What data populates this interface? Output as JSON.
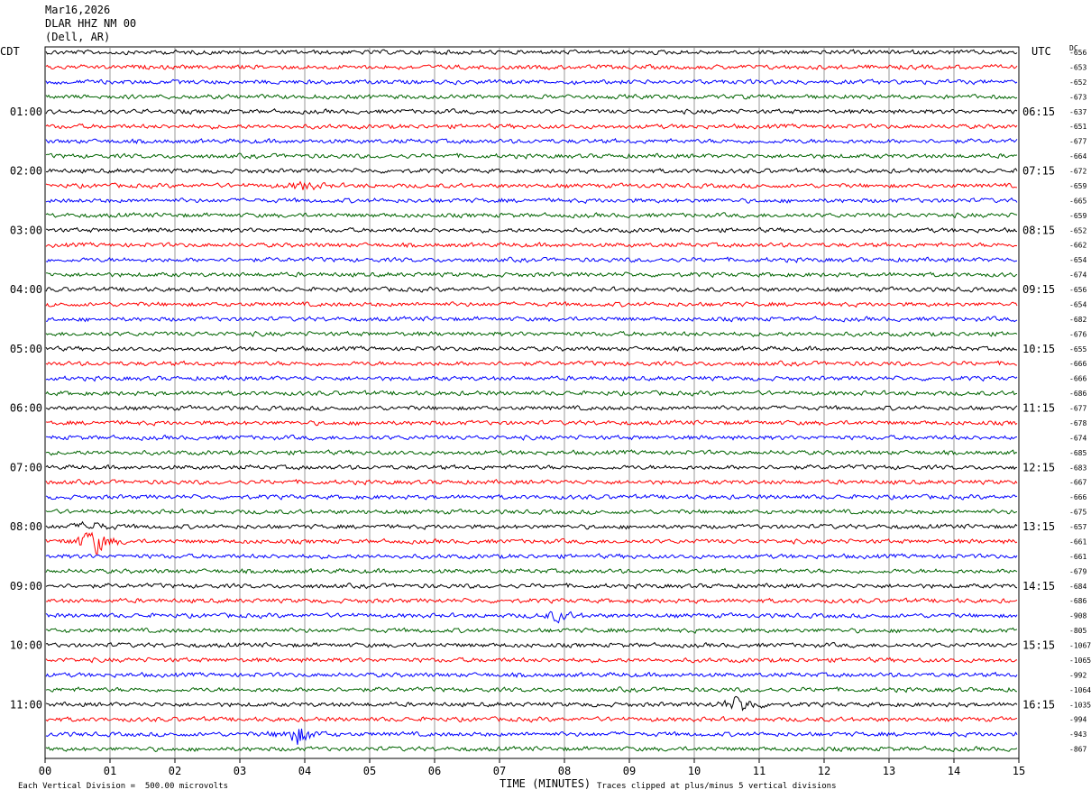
{
  "header": {
    "date": "Mar16,2026",
    "station": "DLAR HHZ NM 00",
    "location": "(Dell, AR)"
  },
  "left_timezone": "CDT",
  "right_timezone": "UTC",
  "dc_label": "DC",
  "footer": {
    "scale_note": "Each Vertical Division =  500.00 microvolts",
    "xaxis_title": "TIME (MINUTES)",
    "clip_note": "Traces clipped at plus/minus 5 vertical divisions"
  },
  "colors": {
    "trace_cycle": [
      "#000000",
      "#ff0000",
      "#0000ff",
      "#006400"
    ],
    "grid": "#808080"
  },
  "chart_data": {
    "type": "line",
    "title": "",
    "xlabel": "TIME (MINUTES)",
    "ylabel": "",
    "xlim": [
      0,
      15
    ],
    "x_tick_labels": [
      "00",
      "01",
      "02",
      "03",
      "04",
      "05",
      "06",
      "07",
      "08",
      "09",
      "10",
      "11",
      "12",
      "13",
      "14",
      "15"
    ],
    "grid": true,
    "traces_per_hour": 4,
    "row_minutes": 15,
    "left_hour_labels": [
      "01:00",
      "02:00",
      "03:00",
      "04:00",
      "05:00",
      "06:00",
      "07:00",
      "08:00",
      "09:00",
      "10:00",
      "11:00"
    ],
    "right_hour_labels": [
      "06:15",
      "07:15",
      "08:15",
      "09:15",
      "10:15",
      "11:15",
      "12:15",
      "13:15",
      "14:15",
      "15:15",
      "16:15"
    ],
    "dc_offsets": [
      -656,
      -653,
      -652,
      -673,
      -637,
      -651,
      -677,
      -664,
      -672,
      -659,
      -665,
      -659,
      -652,
      -662,
      -654,
      -674,
      -656,
      -654,
      -682,
      -676,
      -655,
      -666,
      -666,
      -686,
      -677,
      -678,
      -674,
      -685,
      -683,
      -667,
      -666,
      -675,
      -657,
      -661,
      -661,
      -679,
      -684,
      -686,
      -908,
      -805,
      -1067,
      -1065,
      -992,
      -1064,
      -1035,
      -994,
      -943,
      -867
    ],
    "events": [
      {
        "trace": 33,
        "minute": 0.75,
        "amp": 1.4
      },
      {
        "trace": 32,
        "minute": 0.7,
        "amp": 0.5
      },
      {
        "trace": 46,
        "minute": 3.9,
        "amp": 1.0
      },
      {
        "trace": 44,
        "minute": 10.7,
        "amp": 0.9
      },
      {
        "trace": 38,
        "minute": 7.9,
        "amp": 0.5
      },
      {
        "trace": 9,
        "minute": 4.0,
        "amp": 0.4
      }
    ]
  }
}
